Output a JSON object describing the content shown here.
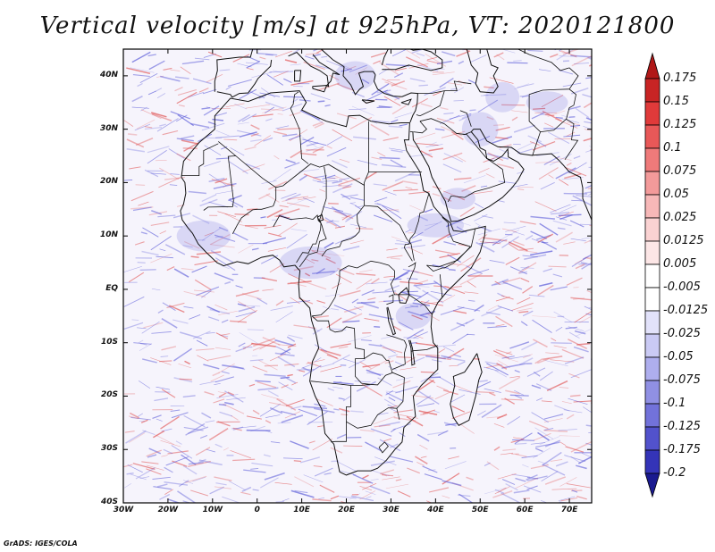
{
  "title": "Vertical velocity [m/s] at 925hPa, VT: 2020121800",
  "footer": "GrADS: IGES/COLA",
  "map": {
    "lon_range": [
      -30,
      75
    ],
    "lat_range": [
      -40,
      45
    ],
    "lat_labels": [
      {
        "value": 40,
        "text": "40N"
      },
      {
        "value": 30,
        "text": "30N"
      },
      {
        "value": 20,
        "text": "20N"
      },
      {
        "value": 10,
        "text": "10N"
      },
      {
        "value": 0,
        "text": "EQ"
      },
      {
        "value": -10,
        "text": "10S"
      },
      {
        "value": -20,
        "text": "20S"
      },
      {
        "value": -30,
        "text": "30S"
      },
      {
        "value": -40,
        "text": "40S"
      }
    ],
    "lon_labels": [
      {
        "value": -30,
        "text": "30W"
      },
      {
        "value": -20,
        "text": "20W"
      },
      {
        "value": -10,
        "text": "10W"
      },
      {
        "value": 0,
        "text": "0"
      },
      {
        "value": 10,
        "text": "10E"
      },
      {
        "value": 20,
        "text": "20E"
      },
      {
        "value": 30,
        "text": "30E"
      },
      {
        "value": 40,
        "text": "40E"
      },
      {
        "value": 50,
        "text": "50E"
      },
      {
        "value": 60,
        "text": "60E"
      },
      {
        "value": 70,
        "text": "70E"
      }
    ]
  },
  "colorbar": {
    "levels": [
      {
        "label": "0.175",
        "color": "#c82424"
      },
      {
        "label": "0.15",
        "color": "#e03a3a"
      },
      {
        "label": "0.125",
        "color": "#e85858"
      },
      {
        "label": "0.1",
        "color": "#ef7a7a"
      },
      {
        "label": "0.075",
        "color": "#f39a9a"
      },
      {
        "label": "0.05",
        "color": "#f7b8b8"
      },
      {
        "label": "0.025",
        "color": "#fad2d2"
      },
      {
        "label": "0.0125",
        "color": "#fce6e6"
      },
      {
        "label": "0.005",
        "color": "#ffffff"
      },
      {
        "label": "-0.005",
        "color": "#ffffff"
      },
      {
        "label": "-0.0125",
        "color": "#e2e2fa"
      },
      {
        "label": "-0.025",
        "color": "#cacaf4"
      },
      {
        "label": "-0.05",
        "color": "#aeaeee"
      },
      {
        "label": "-0.075",
        "color": "#9090e4"
      },
      {
        "label": "-0.1",
        "color": "#7272da"
      },
      {
        "label": "-0.125",
        "color": "#5252cc"
      },
      {
        "label": "-0.175",
        "color": "#3434b8"
      },
      {
        "label": "-0.2",
        "color": "#1c1ca0"
      }
    ],
    "top_color": "#b01818",
    "bottom_color": "#1a1a90"
  },
  "colors": {
    "positive": "#e05050",
    "negative": "#5a5ad8",
    "land_negative": "#7070e0"
  }
}
